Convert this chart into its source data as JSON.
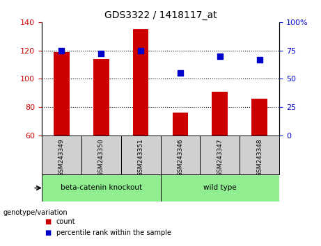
{
  "title": "GDS3322 / 1418117_at",
  "samples": [
    "GSM243349",
    "GSM243350",
    "GSM243351",
    "GSM243346",
    "GSM243347",
    "GSM243348"
  ],
  "counts": [
    119,
    114,
    135,
    76,
    91,
    86
  ],
  "percentile_ranks": [
    75,
    72,
    75,
    55,
    70,
    67
  ],
  "ylim_left": [
    60,
    140
  ],
  "ylim_right": [
    0,
    100
  ],
  "yticks_left": [
    60,
    80,
    100,
    120,
    140
  ],
  "yticks_right": [
    0,
    25,
    50,
    75,
    100
  ],
  "bar_color": "#CC0000",
  "dot_color": "#0000CC",
  "bar_width": 0.4,
  "background_color": "#d0d0d0",
  "group_bg_color": "#90EE90",
  "legend_items": [
    "count",
    "percentile rank within the sample"
  ],
  "genotype_label": "genotype/variation",
  "group_labels": [
    "beta-catenin knockout",
    "wild type"
  ],
  "group_colors": [
    "#90EE90",
    "#90EE90"
  ]
}
